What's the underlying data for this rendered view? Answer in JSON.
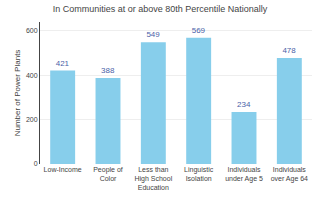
{
  "chart_data": {
    "type": "bar",
    "title": "In Communities at or above 80th Percentile Nationally",
    "categories": [
      "Low-Income",
      "People of\nColor",
      "Less than\nHigh School\nEducation",
      "Linguistic\nIsolation",
      "Individuals\nunder Age 5",
      "Individuals\nover Age 64"
    ],
    "values": [
      421,
      388,
      549,
      569,
      234,
      478
    ],
    "color": "#87CEEB",
    "ylabel": "Number of Power Plants",
    "ylim": [
      0,
      640
    ],
    "yticks": [
      0,
      200,
      400,
      600
    ],
    "grid": true,
    "data_labels": true
  }
}
